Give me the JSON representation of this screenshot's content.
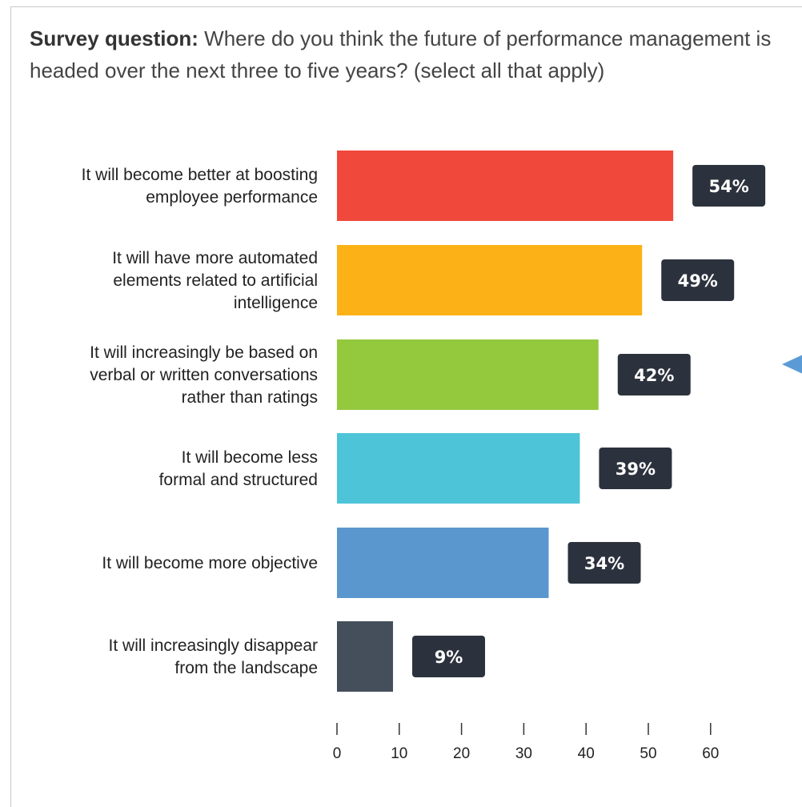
{
  "question": {
    "label": "Survey question:",
    "text": "Where do you think the future of performance management is headed over the next three to five years? (select all that apply)"
  },
  "chart_data": {
    "type": "bar",
    "orientation": "horizontal",
    "categories": [
      [
        "It will become better at boosting",
        "employee performance"
      ],
      [
        "It will have more automated",
        "elements related to artificial",
        "intelligence"
      ],
      [
        "It will increasingly be based on",
        "verbal or written conversations",
        "rather than ratings"
      ],
      [
        "It will become less",
        "formal and structured"
      ],
      [
        "It will become more objective"
      ],
      [
        "It will increasingly disappear",
        "from the landscape"
      ]
    ],
    "values": [
      54,
      49,
      42,
      39,
      34,
      9
    ],
    "value_labels": [
      "54%",
      "49%",
      "42%",
      "39%",
      "34%",
      "9%"
    ],
    "colors": [
      "#f0493b",
      "#fcb216",
      "#94c83d",
      "#4ec4d8",
      "#5b97cf",
      "#454f5b"
    ],
    "label_box_color": "#2c323d",
    "xlim": [
      0,
      60
    ],
    "xticks": [
      0,
      10,
      20,
      30,
      40,
      50,
      60
    ],
    "grid": false,
    "xlabel": "",
    "ylabel": ""
  }
}
